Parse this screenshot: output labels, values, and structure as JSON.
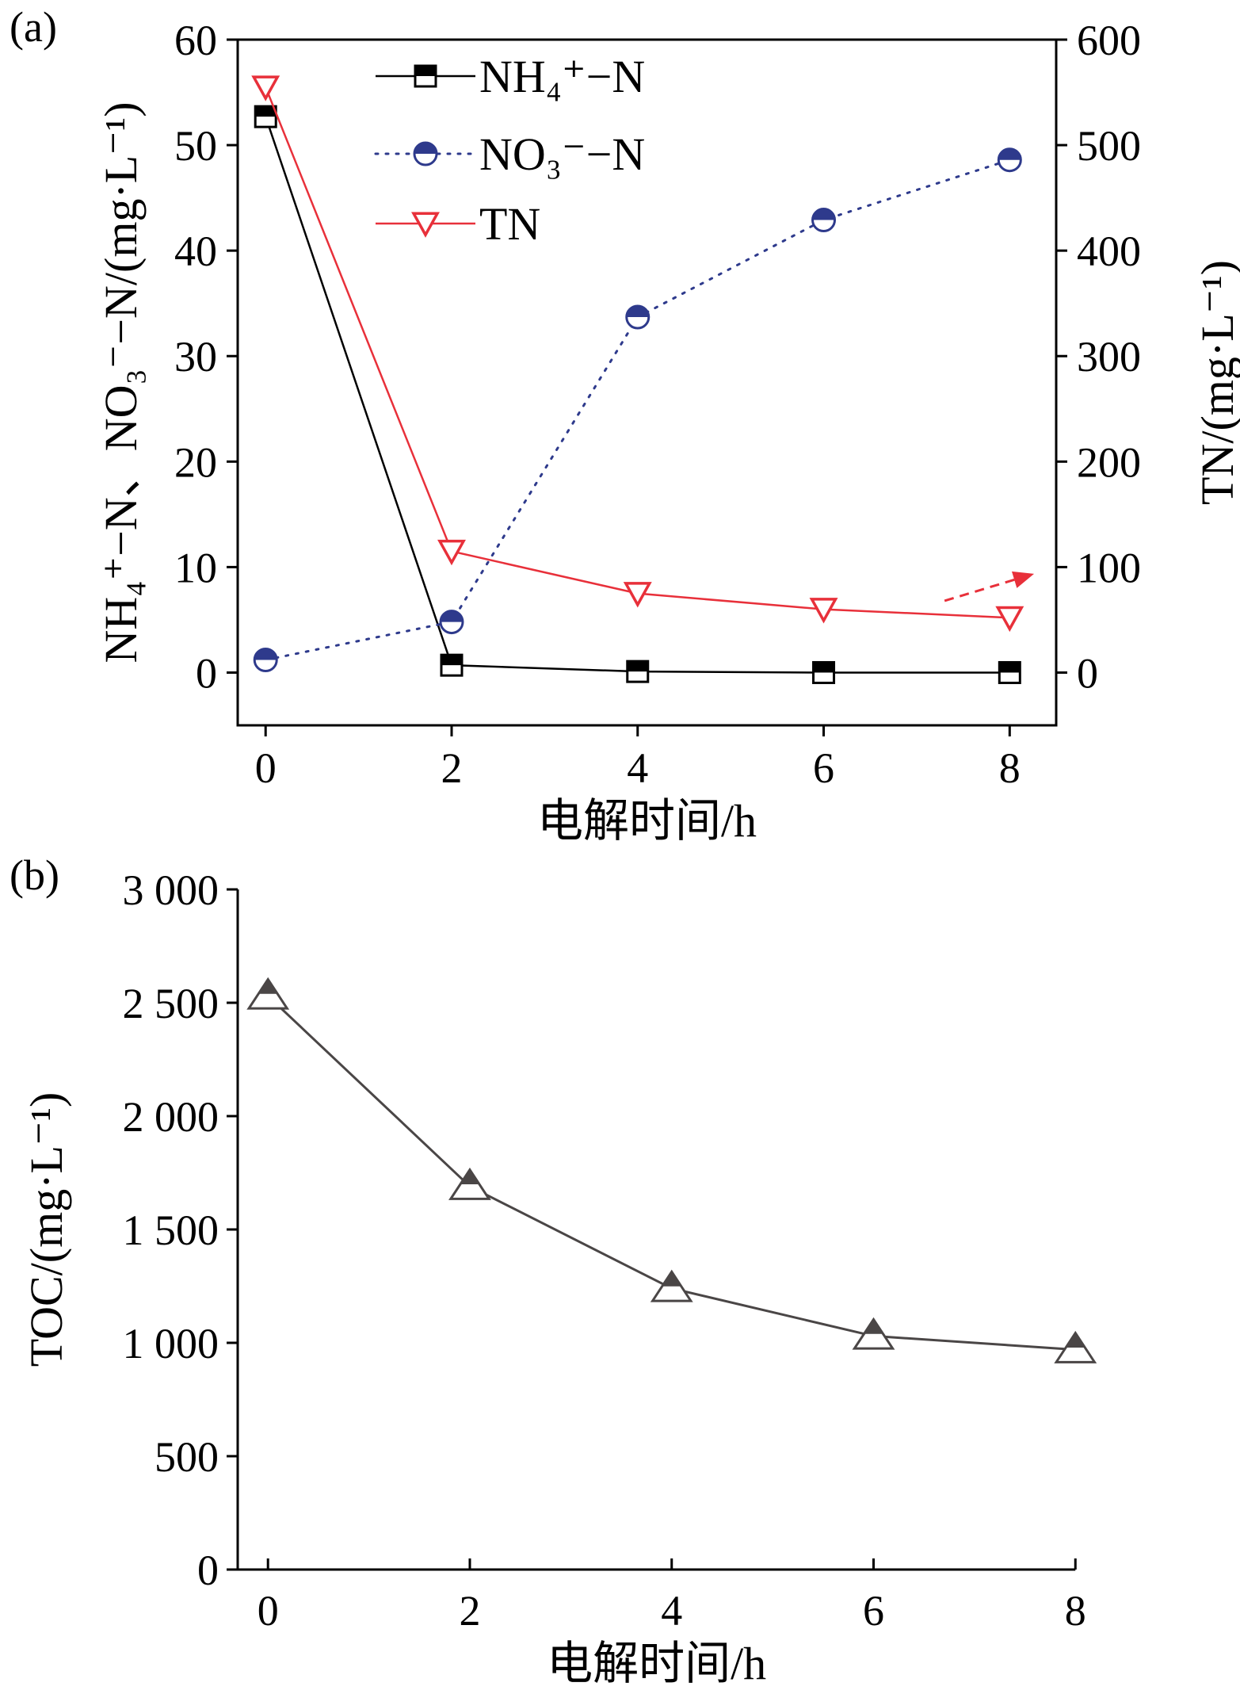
{
  "chart_data": [
    {
      "panel_label": "(a)",
      "type": "line",
      "x": [
        0,
        2,
        4,
        6,
        8
      ],
      "xlim": [
        -0.3,
        8.5
      ],
      "xticks": [
        "0",
        "2",
        "4",
        "6",
        "8"
      ],
      "xlabel": "电解时间/h",
      "ylabel_left": "NH₄⁺−N、NO₃⁻−N/(mg·L⁻¹)",
      "ylim_left": [
        -5,
        60
      ],
      "yticks_left": [
        "0",
        "10",
        "20",
        "30",
        "40",
        "50",
        "60"
      ],
      "ylabel_right": "TN/(mg·L⁻¹)",
      "ylim_right": [
        0,
        600
      ],
      "yticks_right": [
        "0",
        "100",
        "200",
        "300",
        "400",
        "500",
        "600"
      ],
      "legend_position": "top-left",
      "series": [
        {
          "name": "NH₄⁺−N",
          "axis": "left",
          "marker": "half-filled-square",
          "line": "solid",
          "color": "#000000",
          "values": [
            52.7,
            0.7,
            0.1,
            0.0,
            0.0
          ]
        },
        {
          "name": "NO₃⁻−N",
          "axis": "left",
          "marker": "half-filled-circle",
          "line": "dotted",
          "color": "#2e3a8c",
          "values": [
            1.2,
            4.8,
            33.7,
            42.9,
            48.6
          ]
        },
        {
          "name": "TN",
          "axis": "right",
          "marker": "down-triangle",
          "line": "solid",
          "color": "#e8303a",
          "values": [
            555,
            115,
            75,
            60,
            52
          ]
        }
      ],
      "annotation": {
        "type": "dashed-arrow",
        "color": "#e8303a",
        "points_to": "right-axis"
      }
    },
    {
      "panel_label": "(b)",
      "type": "line",
      "x": [
        0,
        2,
        4,
        6,
        8
      ],
      "xlim": [
        -0.3,
        8.1
      ],
      "xticks": [
        "0",
        "2",
        "4",
        "6",
        "8"
      ],
      "xlabel": "电解时间/h",
      "ylabel": "TOC/(mg·L⁻¹)",
      "ylim": [
        0,
        3000
      ],
      "yticks": [
        "0",
        "500",
        "1 000",
        "1 500",
        "2 000",
        "2 500",
        "3 000"
      ],
      "series": [
        {
          "name": "",
          "marker": "half-filled-up-triangle",
          "line": "solid",
          "color": "#4a4646",
          "values": [
            2530,
            1690,
            1240,
            1030,
            970
          ]
        }
      ]
    }
  ]
}
